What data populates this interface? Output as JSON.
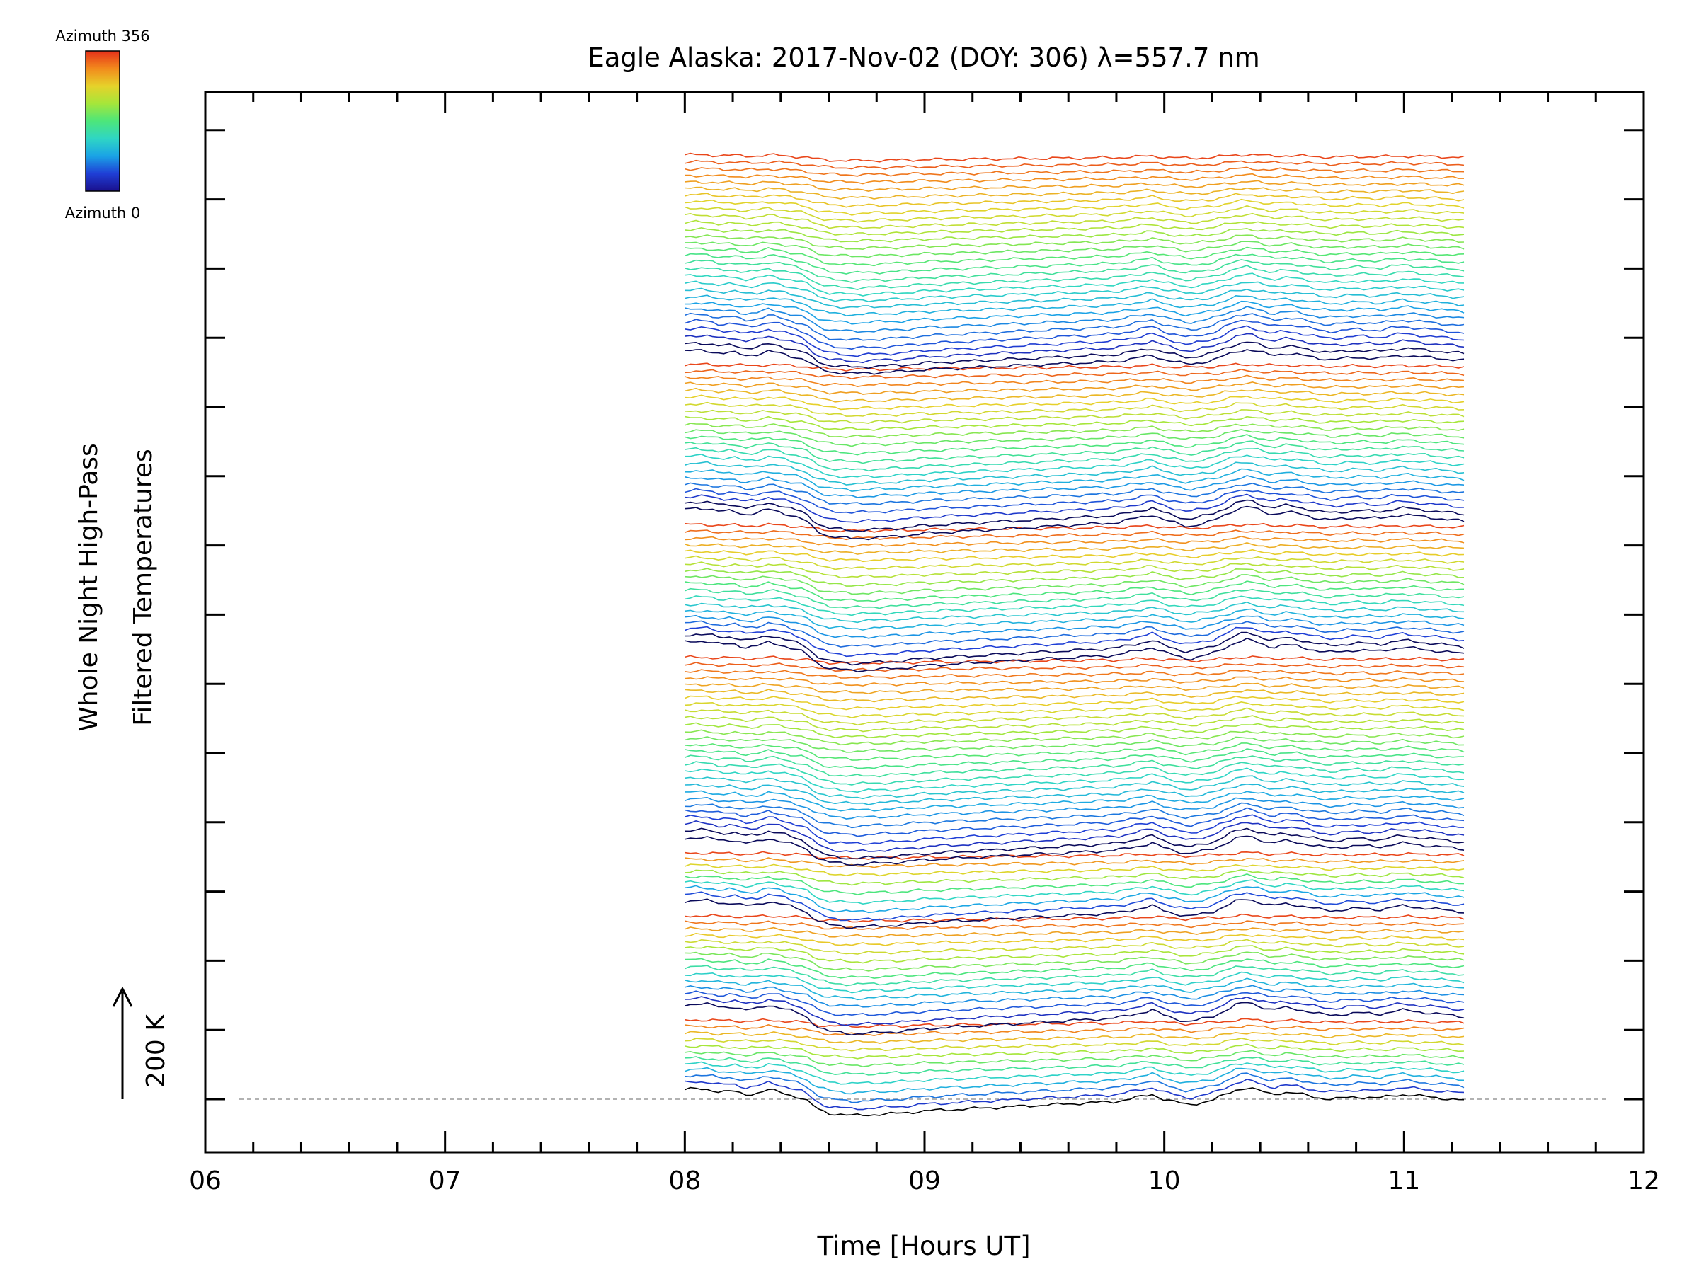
{
  "chart_data": {
    "type": "line",
    "title": "Eagle Alaska: 2017-Nov-02 (DOY: 306) λ=557.7 nm",
    "xlabel": "Time [Hours UT]",
    "ylabel_line1": "Whole Night High-Pass",
    "ylabel_line2": "Filtered Temperatures",
    "xlim": [
      6,
      12
    ],
    "xticks": [
      "06",
      "07",
      "08",
      "09",
      "10",
      "11",
      "12"
    ],
    "scale_bar": {
      "label": "200 K",
      "value_K": 200
    },
    "colorbar": {
      "top_label": "Azimuth 356",
      "bottom_label": "Azimuth 0",
      "min": 0,
      "max": 356,
      "colors": [
        "#1a0f8c",
        "#1f3fd6",
        "#1aa3e6",
        "#2fd6c4",
        "#4de67a",
        "#a6e63a",
        "#e6d22a",
        "#f28a1c",
        "#e6301a"
      ]
    },
    "baseline_color": "#999999",
    "series_summary": {
      "time_start": 8.0,
      "time_end": 11.25,
      "n_traces": 136,
      "azimuth_range": [
        0,
        356
      ],
      "group_starts": [
        0,
        12,
        27,
        36,
        64,
        83,
        106
      ]
    },
    "shape_points": {
      "x": [
        8.0,
        8.05,
        8.1,
        8.15,
        8.2,
        8.25,
        8.3,
        8.35,
        8.4,
        8.45,
        8.5,
        8.55,
        8.6,
        8.7,
        8.8,
        8.9,
        9.0,
        9.1,
        9.2,
        9.3,
        9.4,
        9.5,
        9.6,
        9.7,
        9.8,
        9.9,
        9.95,
        10.0,
        10.1,
        10.2,
        10.3,
        10.35,
        10.4,
        10.45,
        10.5,
        10.55,
        10.6,
        10.65,
        10.7,
        10.8,
        10.9,
        10.95,
        11.0,
        11.1,
        11.2,
        11.25
      ],
      "deviation_K": [
        40,
        45,
        42,
        30,
        35,
        20,
        25,
        40,
        30,
        15,
        0,
        -40,
        -60,
        -70,
        -65,
        -60,
        -50,
        -45,
        -40,
        -35,
        -30,
        -25,
        -20,
        -15,
        -10,
        10,
        20,
        0,
        -25,
        -5,
        40,
        50,
        35,
        20,
        30,
        25,
        15,
        5,
        0,
        10,
        5,
        15,
        20,
        10,
        0,
        -5
      ]
    }
  }
}
